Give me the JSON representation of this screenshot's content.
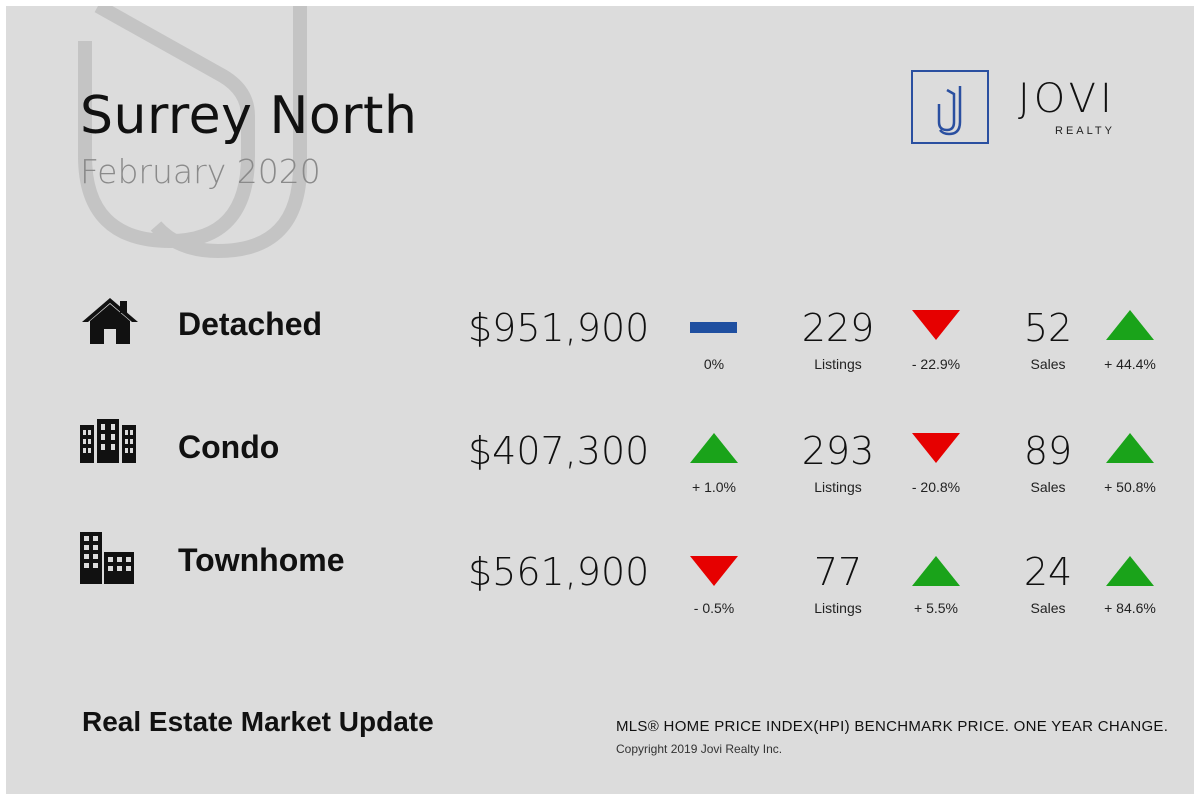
{
  "header": {
    "title": "Surrey North",
    "subtitle": "February 2020",
    "brand": "JOVI",
    "brand_sub": "REALTY",
    "logo_letter": "J"
  },
  "colors": {
    "up": "#1aa31a",
    "down": "#e60000",
    "flat": "#1f4fa0",
    "background": "#dcdcdc"
  },
  "rows": [
    {
      "icon": "house-icon",
      "label": "Detached",
      "price": "$951,900",
      "price_trend": "flat",
      "price_change": "0%",
      "listings": "229",
      "listings_label": "Listings",
      "listings_trend": "down",
      "listings_change": "- 22.9%",
      "sales": "52",
      "sales_label": "Sales",
      "sales_trend": "up",
      "sales_change": "+ 44.4%"
    },
    {
      "icon": "condo-building-icon",
      "label": "Condo",
      "price": "$407,300",
      "price_trend": "up",
      "price_change": "+ 1.0%",
      "listings": "293",
      "listings_label": "Listings",
      "listings_trend": "down",
      "listings_change": "- 20.8%",
      "sales": "89",
      "sales_label": "Sales",
      "sales_trend": "up",
      "sales_change": "+ 50.8%"
    },
    {
      "icon": "townhome-building-icon",
      "label": "Townhome",
      "price": "$561,900",
      "price_trend": "down",
      "price_change": "- 0.5%",
      "listings": "77",
      "listings_label": "Listings",
      "listings_trend": "up",
      "listings_change": "+ 5.5%",
      "sales": "24",
      "sales_label": "Sales",
      "sales_trend": "up",
      "sales_change": "+ 84.6%"
    }
  ],
  "footer": {
    "title": "Real Estate Market Update",
    "note": "MLS® HOME PRICE INDEX(HPI) BENCHMARK PRICE. ONE YEAR CHANGE.",
    "copyright": "Copyright 2019 Jovi Realty Inc."
  }
}
